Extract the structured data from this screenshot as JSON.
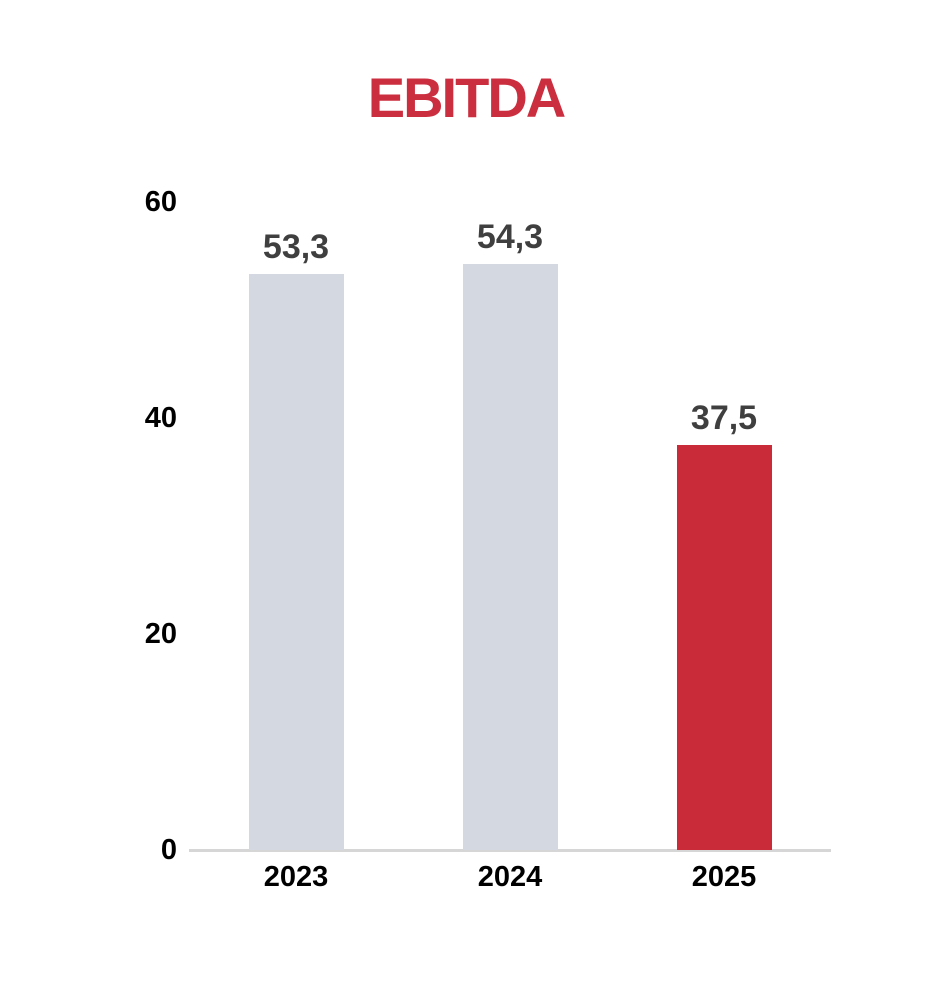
{
  "page": {
    "background_color": "#ffffff"
  },
  "chart_data": {
    "type": "bar",
    "title": "EBITDA",
    "title_color": "#cb2e3e",
    "categories": [
      "2023",
      "2024",
      "2025"
    ],
    "values": [
      53.3,
      54.3,
      37.5
    ],
    "value_labels": [
      "53,3",
      "54,3",
      "37,5"
    ],
    "bar_colors": [
      "#d3d8e1",
      "#d3d8e1",
      "#ca2b38"
    ],
    "value_label_color": "#3f3f3f",
    "tick_label_color": "#000000",
    "axis_line_color": "#d6d6d6",
    "xlabel": "",
    "ylabel": "",
    "ylim": [
      0,
      60
    ],
    "yticks": [
      0,
      20,
      40,
      60
    ],
    "ytick_labels": [
      "0",
      "20",
      "40",
      "60"
    ],
    "grid": false,
    "legend": null
  }
}
